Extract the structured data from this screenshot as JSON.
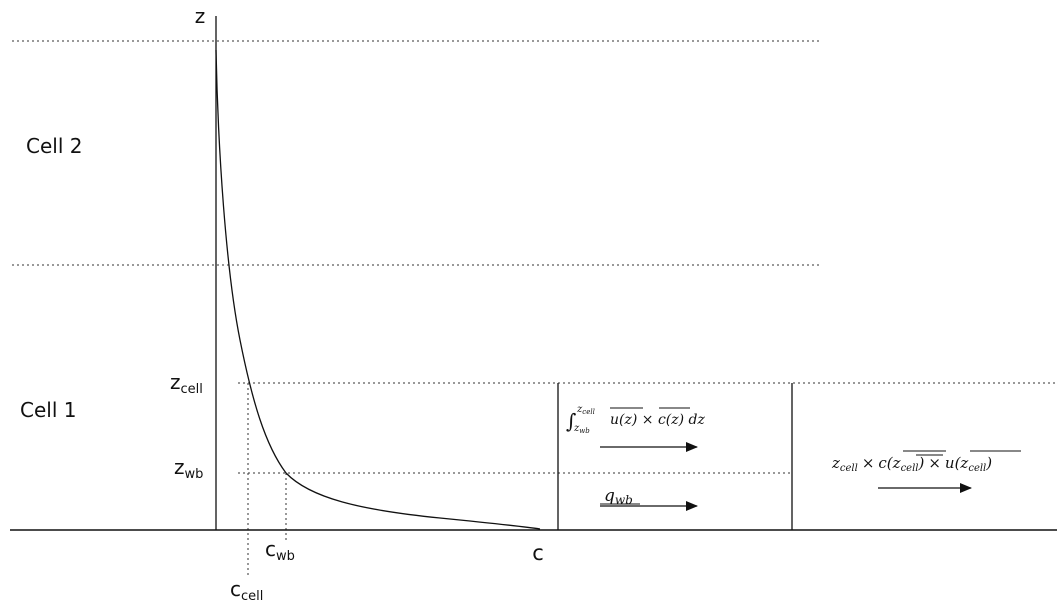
{
  "axes": {
    "z_label": "z",
    "c_label": "c"
  },
  "cells": {
    "cell2": "Cell 2",
    "cell1": "Cell 1"
  },
  "levels": {
    "z_cell": {
      "base": "z",
      "sub": "cell"
    },
    "z_wb": {
      "base": "z",
      "sub": "wb"
    }
  },
  "concentrations": {
    "c_wb": {
      "base": "c",
      "sub": "wb"
    },
    "c_cell": {
      "base": "c",
      "sub": "cell"
    }
  },
  "fluxes": {
    "integral": {
      "lower_limit_base": "z",
      "lower_limit_sub": "wb",
      "upper_limit_base": "z",
      "upper_limit_sub": "cell",
      "integrand": "u(z) × c(z) dz"
    },
    "q_wb": {
      "base": "q",
      "sub": "wb"
    },
    "product": {
      "z_base": "z",
      "z_sub": "cell",
      "times1": "×",
      "c_expr": "c(z",
      "c_sub": "cell",
      "times2": "×",
      "u_expr": "u(z",
      "u_sub": "cell"
    }
  }
}
